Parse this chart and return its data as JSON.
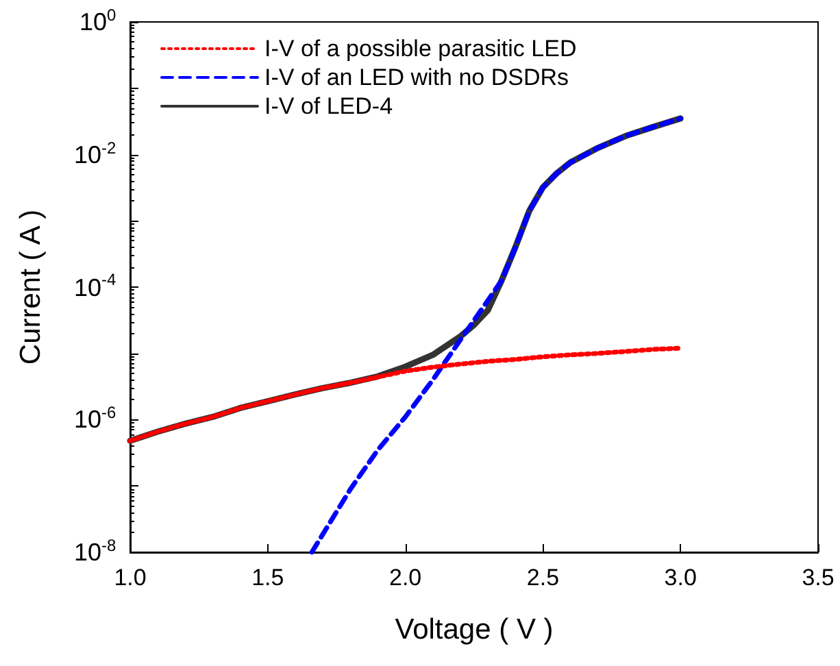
{
  "chart_data": {
    "type": "line",
    "xlabel": "Voltage ( V )",
    "ylabel": "Current ( A )",
    "log": "y",
    "marker": "none",
    "legend": "top left",
    "grid": false,
    "xlim": [
      1.0,
      3.5
    ],
    "xticks": [
      {
        "value": 1.0,
        "label": "1.0"
      },
      {
        "value": 1.5,
        "label": "1.5"
      },
      {
        "value": 2.0,
        "label": "2.0"
      },
      {
        "value": 2.5,
        "label": "2.5"
      },
      {
        "value": 3.0,
        "label": "3.0"
      },
      {
        "value": 3.5,
        "label": "3.5"
      }
    ],
    "ylim": [
      1e-08,
      1
    ],
    "yticks": [
      {
        "value": 1e-08,
        "label": "10$^{-8}$"
      },
      {
        "value": 1e-07,
        "label": null
      },
      {
        "value": 1e-06,
        "label": "10$^{-6}$"
      },
      {
        "value": 1e-05,
        "label": null
      },
      {
        "value": 0.0001,
        "label": "10$^{-4}$"
      },
      {
        "value": 0.001,
        "label": null
      },
      {
        "value": 0.01,
        "label": "10$^{-2}$"
      },
      {
        "value": 0.1,
        "label": null
      },
      {
        "value": 1,
        "label": "10$^{0}$"
      }
    ],
    "series": [
      {
        "name": "I-V of a possible parasitic LED",
        "color": "#ff0000",
        "line_style": "dotted",
        "x": [
          1.0,
          1.1,
          1.2,
          1.3,
          1.4,
          1.5,
          1.6,
          1.7,
          1.8,
          1.9,
          2.0,
          2.1,
          2.2,
          2.3,
          2.4,
          2.5,
          2.6,
          2.7,
          2.8,
          2.9,
          3.0
        ],
        "values": [
          4.8e-07,
          6.6e-07,
          8.7e-07,
          1.1e-06,
          1.5e-06,
          1.9e-06,
          2.4e-06,
          3e-06,
          3.6e-06,
          4.4e-06,
          5.4e-06,
          6.2e-06,
          6.9e-06,
          7.6e-06,
          8.1e-06,
          8.9e-06,
          9.5e-06,
          1e-05,
          1.07e-05,
          1.15e-05,
          1.2e-05
        ]
      },
      {
        "name": "I-V of an LED with no DSDRs",
        "color": "#0000ff",
        "line_style": "dashed",
        "x": [
          1.66,
          1.8,
          1.9,
          2.0,
          2.1,
          2.2,
          2.3,
          2.35,
          2.4,
          2.45,
          2.5,
          2.55,
          2.6,
          2.7,
          2.8,
          2.9,
          3.0
        ],
        "values": [
          1e-08,
          8.9e-08,
          3.5e-07,
          1.1e-06,
          4e-06,
          1.6e-05,
          6.3e-05,
          0.000126,
          0.0004,
          0.0014,
          0.0032,
          0.0052,
          0.0076,
          0.0126,
          0.019,
          0.026,
          0.035
        ]
      },
      {
        "name": "I-V of LED-4",
        "color": "#333333",
        "line_style": "solid",
        "x": [
          1.0,
          1.1,
          1.2,
          1.3,
          1.4,
          1.5,
          1.6,
          1.7,
          1.8,
          1.9,
          2.0,
          2.1,
          2.2,
          2.25,
          2.3,
          2.35,
          2.4,
          2.45,
          2.5,
          2.55,
          2.6,
          2.7,
          2.8,
          2.9,
          3.0
        ],
        "values": [
          4.8e-07,
          6.6e-07,
          8.7e-07,
          1.1e-06,
          1.5e-06,
          1.9e-06,
          2.4e-06,
          3e-06,
          3.6e-06,
          4.5e-06,
          6.3e-06,
          9.5e-06,
          1.8e-05,
          2.7e-05,
          4.5e-05,
          0.000126,
          0.0004,
          0.0014,
          0.0032,
          0.0052,
          0.0076,
          0.0126,
          0.019,
          0.026,
          0.035
        ]
      }
    ]
  }
}
